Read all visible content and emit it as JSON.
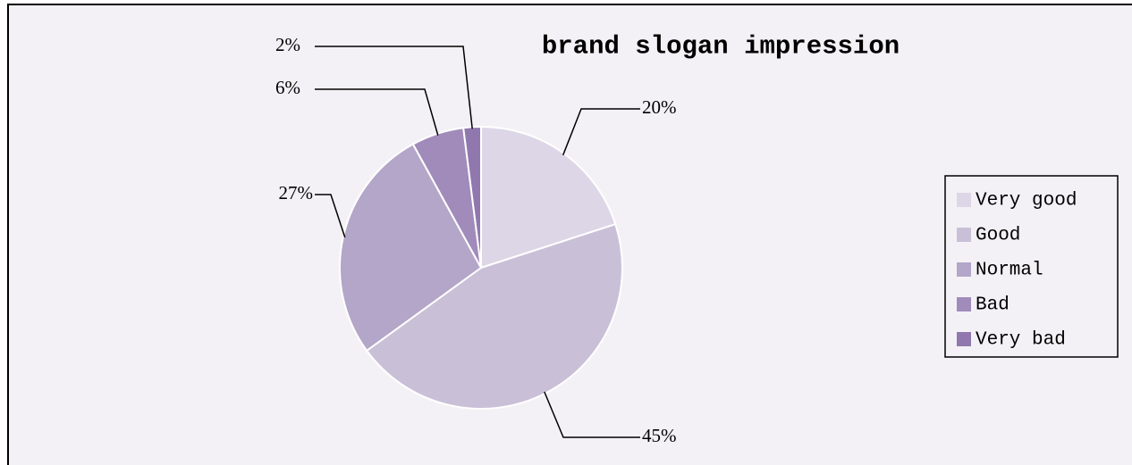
{
  "chart_data": {
    "type": "pie",
    "title": "brand slogan impression",
    "categories": [
      "Very good",
      "Good",
      "Normal",
      "Bad",
      "Very bad"
    ],
    "values": [
      20,
      45,
      27,
      6,
      2
    ],
    "value_labels": [
      "20%",
      "45%",
      "27%",
      "6%",
      "2%"
    ],
    "colors": [
      "#dcd6e6",
      "#c9c0d8",
      "#b3a6c8",
      "#a08bbb",
      "#9078ae"
    ],
    "legend": "right"
  }
}
